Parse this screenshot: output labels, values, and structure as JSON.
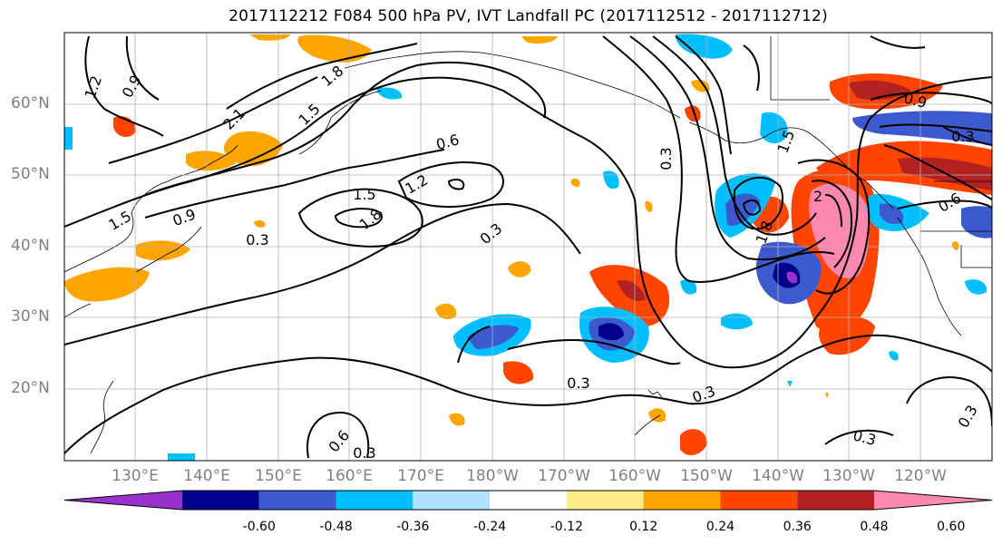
{
  "title": "2017112212 F084 500 hPa PV, IVT Landfall PC (2017112512 - 2017112712)",
  "lat_labels": [
    "60°N",
    "50°N",
    "40°N",
    "30°N",
    "20°N"
  ],
  "lon_labels": [
    "130°E",
    "140°E",
    "150°E",
    "160°E",
    "170°E",
    "180°W",
    "170°W",
    "160°W",
    "150°W",
    "140°W",
    "130°W",
    "120°W"
  ],
  "colorbar": {
    "colors": [
      "#9932CC",
      "#00008B",
      "#3C5ACD",
      "#00BFFF",
      "#B0E2FF",
      "#FFFFFF",
      "#FFEC8B",
      "#FFA500",
      "#FF4500",
      "#B22222",
      "#FF88B0"
    ],
    "tick_labels": [
      "-0.60",
      "-0.48",
      "-0.36",
      "-0.24",
      "-0.12",
      "0.12",
      "0.24",
      "0.36",
      "0.48",
      "0.60"
    ]
  },
  "contour_labels": [
    "1.2",
    "0.9",
    "1.8",
    "1.5",
    "2.1",
    "0.6",
    "1.5",
    "1.2",
    "1.8",
    "0.3",
    "0.9",
    "1.5",
    "0.3",
    "0.3",
    "0.3",
    "0.3",
    "0.6",
    "0.3",
    "0.3",
    "0.3",
    "0.9",
    "0.3",
    "0.6",
    "1.5",
    "1.8",
    "2"
  ]
}
